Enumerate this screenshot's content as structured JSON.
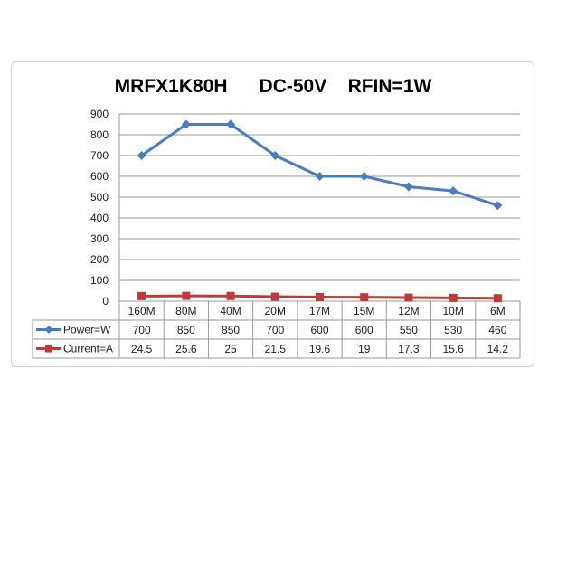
{
  "chart_data": {
    "type": "line",
    "title": "MRFX1K80H      DC-50V    RFIN=1W",
    "categories": [
      "160M",
      "80M",
      "40M",
      "20M",
      "17M",
      "15M",
      "12M",
      "10M",
      "6M"
    ],
    "series": [
      {
        "name": "Power=W",
        "values": [
          700,
          850,
          850,
          700,
          600,
          600,
          550,
          530,
          460
        ],
        "color": "#4a7cc0",
        "marker": "diamond"
      },
      {
        "name": "Current=A",
        "values": [
          24.5,
          25.6,
          25,
          21.5,
          19.6,
          19,
          17.3,
          15.6,
          14.2
        ],
        "color": "#c0393b",
        "marker": "square"
      }
    ],
    "yticks": [
      "0",
      "100",
      "200",
      "300",
      "400",
      "500",
      "600",
      "700",
      "800",
      "900"
    ],
    "ylim": [
      0,
      900
    ],
    "grid": true,
    "legend": "data-table"
  }
}
